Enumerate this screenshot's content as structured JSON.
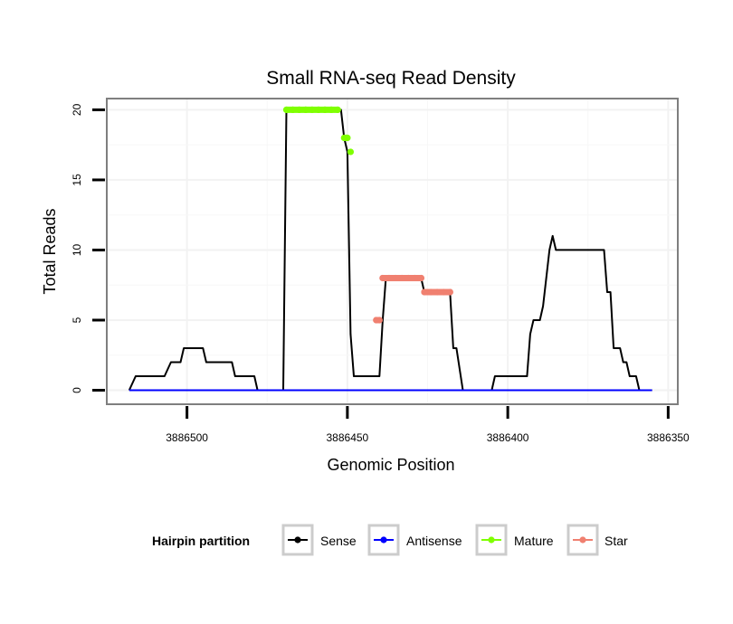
{
  "chart_data": {
    "type": "line",
    "title": "Small RNA-seq Read Density",
    "xlabel": "Genomic Position",
    "ylabel": "Total Reads",
    "xlim": [
      3886525,
      3886347
    ],
    "ylim": [
      -1,
      20.8
    ],
    "x_reversed": true,
    "grid": true,
    "x_ticks": [
      3886500,
      3886450,
      3886400,
      3886350
    ],
    "x_tick_labels": [
      "3886500",
      "3886450",
      "3886400",
      "3886350"
    ],
    "y_ticks": [
      0,
      5,
      10,
      15,
      20
    ],
    "y_tick_labels": [
      "0",
      "5",
      "10",
      "15",
      "20"
    ],
    "legend": {
      "title": "Hairpin partition",
      "placement": "bottom",
      "entries": [
        {
          "name": "Sense",
          "color": "#000000"
        },
        {
          "name": "Antisense",
          "color": "#0000ff"
        },
        {
          "name": "Mature",
          "color": "#7fff00"
        },
        {
          "name": "Star",
          "color": "#f08070"
        }
      ]
    },
    "series": [
      {
        "name": "Sense",
        "color": "#000000",
        "points": [
          [
            3886518,
            0
          ],
          [
            3886516,
            1
          ],
          [
            3886507,
            1
          ],
          [
            3886505,
            2
          ],
          [
            3886502,
            2
          ],
          [
            3886501,
            3
          ],
          [
            3886495,
            3
          ],
          [
            3886494,
            2
          ],
          [
            3886486,
            2
          ],
          [
            3886485,
            1
          ],
          [
            3886479,
            1
          ],
          [
            3886478,
            0
          ],
          [
            3886470,
            0
          ],
          [
            3886469,
            20
          ],
          [
            3886452,
            20
          ],
          [
            3886451,
            18
          ],
          [
            3886450,
            17
          ],
          [
            3886449,
            4
          ],
          [
            3886448,
            1
          ],
          [
            3886440,
            1
          ],
          [
            3886439,
            5
          ],
          [
            3886438,
            8
          ],
          [
            3886427,
            8
          ],
          [
            3886426,
            7
          ],
          [
            3886418,
            7
          ],
          [
            3886417,
            3
          ],
          [
            3886416,
            3
          ],
          [
            3886414,
            0
          ],
          [
            3886405,
            0
          ],
          [
            3886404,
            1
          ],
          [
            3886394,
            1
          ],
          [
            3886393,
            4
          ],
          [
            3886392,
            5
          ],
          [
            3886390,
            5
          ],
          [
            3886389,
            6
          ],
          [
            3886387,
            10
          ],
          [
            3886386,
            11
          ],
          [
            3886385,
            10
          ],
          [
            3886370,
            10
          ],
          [
            3886369,
            7
          ],
          [
            3886368,
            7
          ],
          [
            3886367,
            3
          ],
          [
            3886365,
            3
          ],
          [
            3886364,
            2
          ],
          [
            3886363,
            2
          ],
          [
            3886362,
            1
          ],
          [
            3886360,
            1
          ],
          [
            3886359,
            0
          ],
          [
            3886355,
            0
          ]
        ]
      },
      {
        "name": "Antisense",
        "color": "#0000ff",
        "points": [
          [
            3886518,
            0
          ],
          [
            3886355,
            0
          ]
        ]
      },
      {
        "name": "Mature",
        "color": "#7fff00",
        "points": [
          [
            3886469,
            20
          ],
          [
            3886467,
            20
          ],
          [
            3886465,
            20
          ],
          [
            3886463,
            20
          ],
          [
            3886461,
            20
          ],
          [
            3886459,
            20
          ],
          [
            3886457,
            20
          ],
          [
            3886455,
            20
          ],
          [
            3886453,
            20
          ],
          [
            3886451,
            18
          ],
          [
            3886450,
            18
          ],
          [
            3886449,
            17
          ]
        ]
      },
      {
        "name": "Star",
        "color": "#f08070",
        "points": [
          [
            3886441,
            5
          ],
          [
            3886440,
            5
          ],
          [
            3886439,
            8
          ],
          [
            3886437,
            8
          ],
          [
            3886435,
            8
          ],
          [
            3886433,
            8
          ],
          [
            3886431,
            8
          ],
          [
            3886429,
            8
          ],
          [
            3886427,
            8
          ],
          [
            3886426,
            7
          ],
          [
            3886424,
            7
          ],
          [
            3886422,
            7
          ],
          [
            3886420,
            7
          ],
          [
            3886418,
            7
          ]
        ]
      }
    ]
  }
}
